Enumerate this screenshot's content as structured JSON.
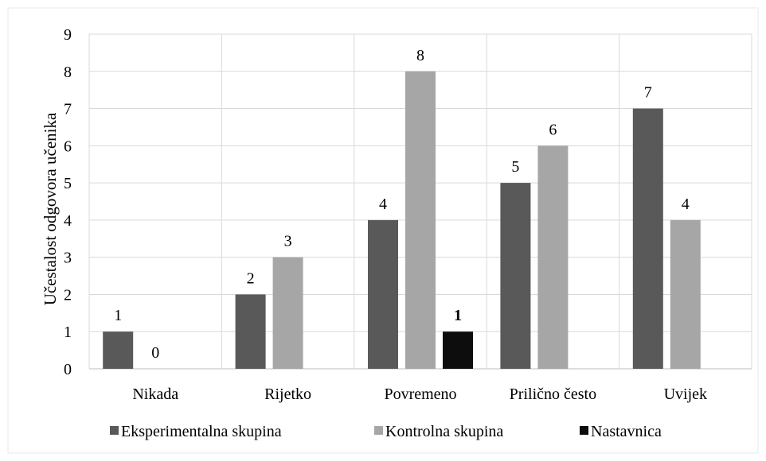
{
  "chart_data": {
    "type": "bar",
    "categories": [
      "Nikada",
      "Rijetko",
      "Povremeno",
      "Prilično često",
      "Uvijek"
    ],
    "series": [
      {
        "name": "Eksperimentalna skupina",
        "values": [
          1,
          2,
          4,
          5,
          7
        ],
        "color": "#595959"
      },
      {
        "name": "Kontrolna skupina",
        "values": [
          0,
          3,
          8,
          6,
          4
        ],
        "color": "#a6a6a6"
      },
      {
        "name": "Nastavnica",
        "values": [
          null,
          null,
          1,
          null,
          null
        ],
        "color": "#0d0d0d"
      }
    ],
    "ylabel": "Učestalost odgovora učenika",
    "xlabel": "",
    "ylim": [
      0,
      9
    ],
    "yticks": [
      0,
      1,
      2,
      3,
      4,
      5,
      6,
      7,
      8,
      9
    ],
    "grid": true,
    "legend_position": "bottom",
    "data_labels": [
      [
        "1",
        "2",
        "4",
        "5",
        "7"
      ],
      [
        "0",
        "3",
        "8",
        "6",
        "4"
      ],
      [
        "",
        "",
        "1",
        "",
        ""
      ]
    ],
    "bold_labels_series": [
      2
    ]
  }
}
